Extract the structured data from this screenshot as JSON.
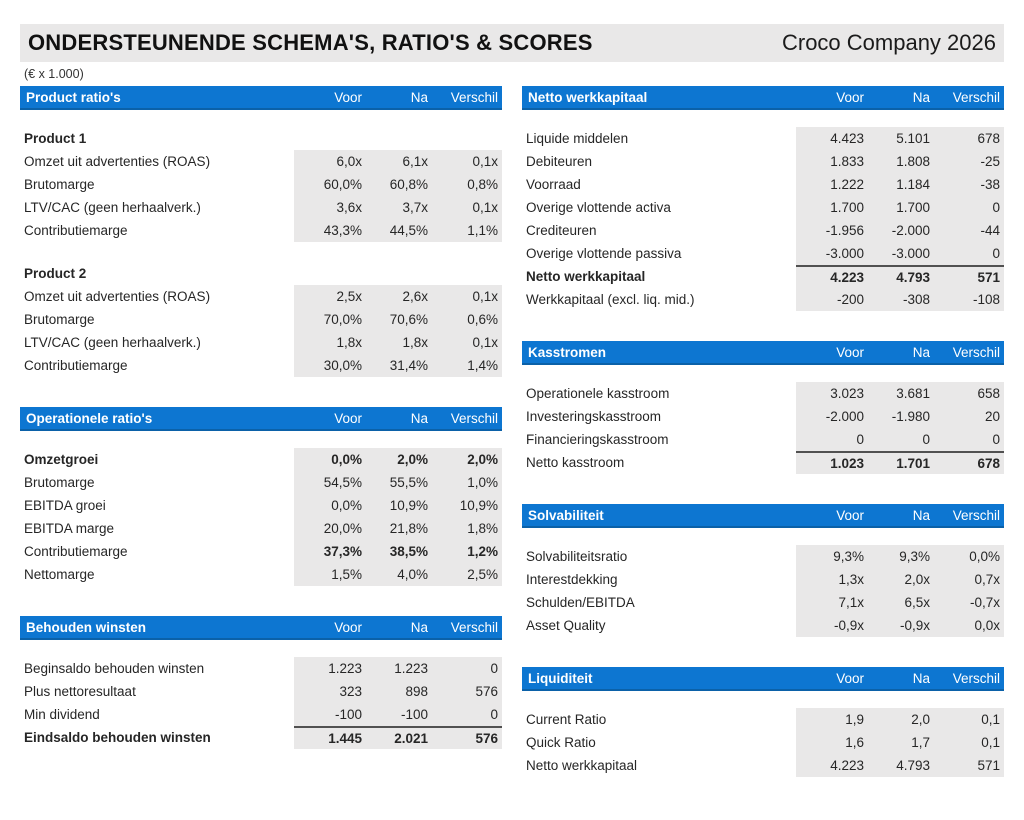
{
  "meta": {
    "title": "ONDERSTEUNENDE SCHEMA'S, RATIO'S & SCORES",
    "company": "Croco Company 2026",
    "units_note": "(€ x 1.000)"
  },
  "colors": {
    "header_blue": "#0d76d1",
    "header_blue_edge": "#0b61a8",
    "band_gray": "#e9e8e8",
    "total_rule": "#515151"
  },
  "value_columns": [
    "Voor",
    "Na",
    "Verschil"
  ],
  "sections": [
    {
      "id": "product-ratios",
      "column": "left",
      "title": "Product ratio's",
      "blocks": [
        {
          "subheading": "Product 1",
          "rows": [
            {
              "label": "Omzet uit advertenties (ROAS)",
              "values": [
                "6,0x",
                "6,1x",
                "0,1x"
              ]
            },
            {
              "label": "Brutomarge",
              "values": [
                "60,0%",
                "60,8%",
                "0,8%"
              ]
            },
            {
              "label": "LTV/CAC (geen herhaalverk.)",
              "values": [
                "3,6x",
                "3,7x",
                "0,1x"
              ]
            },
            {
              "label": "Contributiemarge",
              "values": [
                "43,3%",
                "44,5%",
                "1,1%"
              ]
            }
          ]
        },
        {
          "subheading": "Product 2",
          "rows": [
            {
              "label": "Omzet uit advertenties (ROAS)",
              "values": [
                "2,5x",
                "2,6x",
                "0,1x"
              ]
            },
            {
              "label": "Brutomarge",
              "values": [
                "70,0%",
                "70,6%",
                "0,6%"
              ]
            },
            {
              "label": "LTV/CAC (geen herhaalverk.)",
              "values": [
                "1,8x",
                "1,8x",
                "0,1x"
              ]
            },
            {
              "label": "Contributiemarge",
              "values": [
                "30,0%",
                "31,4%",
                "1,4%"
              ]
            }
          ]
        }
      ]
    },
    {
      "id": "operationele-ratios",
      "column": "left",
      "title": "Operationele ratio's",
      "blocks": [
        {
          "rows": [
            {
              "label": "Omzetgroei",
              "values": [
                "0,0%",
                "2,0%",
                "2,0%"
              ],
              "bold_label": true,
              "bold_values": true
            },
            {
              "label": "Brutomarge",
              "values": [
                "54,5%",
                "55,5%",
                "1,0%"
              ]
            },
            {
              "label": "EBITDA groei",
              "values": [
                "0,0%",
                "10,9%",
                "10,9%"
              ]
            },
            {
              "label": "EBITDA marge",
              "values": [
                "20,0%",
                "21,8%",
                "1,8%"
              ]
            },
            {
              "label": "Contributiemarge",
              "values": [
                "37,3%",
                "38,5%",
                "1,2%"
              ],
              "bold_values": true
            },
            {
              "label": "Nettomarge",
              "values": [
                "1,5%",
                "4,0%",
                "2,5%"
              ]
            }
          ]
        }
      ]
    },
    {
      "id": "behouden-winsten",
      "column": "left",
      "title": "Behouden winsten",
      "blocks": [
        {
          "rows": [
            {
              "label": "Beginsaldo behouden winsten",
              "values": [
                "1.223",
                "1.223",
                "0"
              ]
            },
            {
              "label": "Plus nettoresultaat",
              "values": [
                "323",
                "898",
                "576"
              ]
            },
            {
              "label": "Min dividend",
              "values": [
                "-100",
                "-100",
                "0"
              ]
            },
            {
              "label": "Eindsaldo behouden winsten",
              "values": [
                "1.445",
                "2.021",
                "576"
              ],
              "bold_label": true,
              "bold_values": true,
              "total_rule": true
            }
          ]
        }
      ]
    },
    {
      "id": "netto-werkkapitaal",
      "column": "right",
      "title": "Netto werkkapitaal",
      "blocks": [
        {
          "rows": [
            {
              "label": "Liquide middelen",
              "values": [
                "4.423",
                "5.101",
                "678"
              ]
            },
            {
              "label": "Debiteuren",
              "values": [
                "1.833",
                "1.808",
                "-25"
              ]
            },
            {
              "label": "Voorraad",
              "values": [
                "1.222",
                "1.184",
                "-38"
              ]
            },
            {
              "label": "Overige vlottende activa",
              "values": [
                "1.700",
                "1.700",
                "0"
              ]
            },
            {
              "label": "Crediteuren",
              "values": [
                "-1.956",
                "-2.000",
                "-44"
              ]
            },
            {
              "label": "Overige vlottende passiva",
              "values": [
                "-3.000",
                "-3.000",
                "0"
              ]
            },
            {
              "label": "Netto werkkapitaal",
              "values": [
                "4.223",
                "4.793",
                "571"
              ],
              "bold_label": true,
              "bold_values": true,
              "total_rule": true
            },
            {
              "label": "Werkkapitaal (excl. liq. mid.)",
              "values": [
                "-200",
                "-308",
                "-108"
              ]
            }
          ]
        }
      ]
    },
    {
      "id": "kasstromen",
      "column": "right",
      "title": "Kasstromen",
      "blocks": [
        {
          "rows": [
            {
              "label": "Operationele kasstroom",
              "values": [
                "3.023",
                "3.681",
                "658"
              ]
            },
            {
              "label": "Investeringskasstroom",
              "values": [
                "-2.000",
                "-1.980",
                "20"
              ]
            },
            {
              "label": "Financieringskasstroom",
              "values": [
                "0",
                "0",
                "0"
              ]
            },
            {
              "label": "Netto kasstroom",
              "values": [
                "1.023",
                "1.701",
                "678"
              ],
              "bold_values": true,
              "total_rule": true
            }
          ]
        }
      ]
    },
    {
      "id": "solvabiliteit",
      "column": "right",
      "title": "Solvabiliteit",
      "blocks": [
        {
          "rows": [
            {
              "label": "Solvabiliteitsratio",
              "values": [
                "9,3%",
                "9,3%",
                "0,0%"
              ]
            },
            {
              "label": "Interestdekking",
              "values": [
                "1,3x",
                "2,0x",
                "0,7x"
              ]
            },
            {
              "label": "Schulden/EBITDA",
              "values": [
                "7,1x",
                "6,5x",
                "-0,7x"
              ]
            },
            {
              "label": "Asset Quality",
              "values": [
                "-0,9x",
                "-0,9x",
                "0,0x"
              ]
            }
          ]
        }
      ]
    },
    {
      "id": "liquiditeit",
      "column": "right",
      "title": "Liquiditeit",
      "blocks": [
        {
          "rows": [
            {
              "label": "Current Ratio",
              "values": [
                "1,9",
                "2,0",
                "0,1"
              ]
            },
            {
              "label": "Quick Ratio",
              "values": [
                "1,6",
                "1,7",
                "0,1"
              ]
            },
            {
              "label": "Netto werkkapitaal",
              "values": [
                "4.223",
                "4.793",
                "571"
              ]
            }
          ]
        }
      ]
    }
  ]
}
